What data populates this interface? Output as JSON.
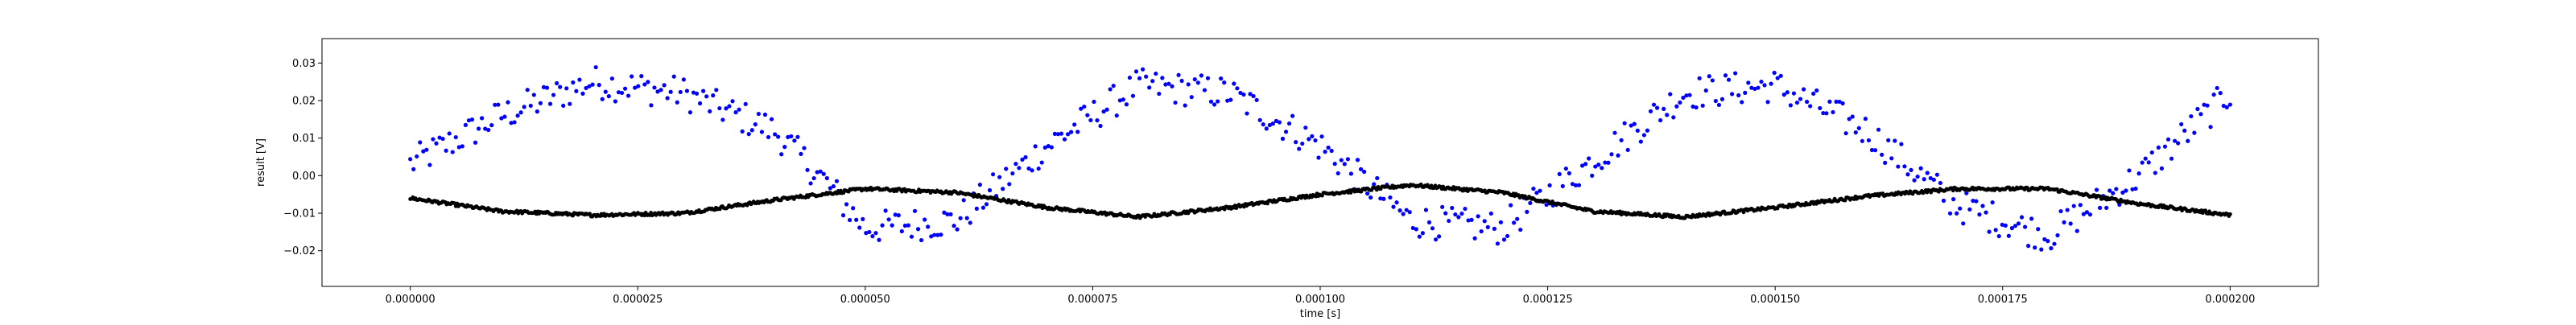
{
  "chart_data": {
    "type": "scatter",
    "title": "",
    "xlabel": "time [s]",
    "ylabel": "result [V]",
    "xlim": [
      -9.7e-06,
      0.0002097
    ],
    "ylim": [
      -0.0295,
      0.0365
    ],
    "grid": false,
    "xticks": [
      0.0,
      2.5e-05,
      5e-05,
      7.5e-05,
      0.0001,
      0.000125,
      0.00015,
      0.000175,
      0.0002
    ],
    "xtick_labels": [
      "0.000000",
      "0.000025",
      "0.000050",
      "0.000075",
      "0.000100",
      "0.000125",
      "0.000150",
      "0.000175",
      "0.000200"
    ],
    "yticks": [
      -0.02,
      -0.01,
      0.0,
      0.01,
      0.02,
      0.03
    ],
    "ytick_labels": [
      "−0.02",
      "−0.01",
      "0.00",
      "0.01",
      "0.02",
      "0.03"
    ],
    "series": [
      {
        "color": "#0000ff",
        "marker": "dot",
        "x": [
          0.0,
          1e-05,
          2e-05,
          3e-05,
          4e-05,
          4.5e-05,
          5e-05,
          6e-05,
          7e-05,
          8e-05,
          9e-05,
          0.0001,
          0.00011,
          0.00012,
          0.00013,
          0.00014,
          0.00015,
          0.00016,
          0.00017,
          0.00018,
          0.00019,
          0.0002
        ],
        "y": [
          0.003,
          0.016,
          0.025,
          0.022,
          0.012,
          0.0,
          -0.014,
          -0.012,
          0.008,
          0.024,
          0.022,
          0.008,
          -0.012,
          -0.014,
          0.004,
          0.022,
          0.024,
          0.012,
          -0.008,
          -0.016,
          0.0,
          0.022
        ],
        "spread": 0.0045
      },
      {
        "color": "#000000",
        "marker": "dot",
        "x": [
          0.0,
          1e-05,
          2e-05,
          3e-05,
          4e-05,
          5e-05,
          6e-05,
          7e-05,
          8e-05,
          9e-05,
          0.0001,
          0.00011,
          0.00012,
          0.00013,
          0.00014,
          0.00015,
          0.00016,
          0.00017,
          0.00018,
          0.00019,
          0.0002
        ],
        "y": [
          -0.006,
          -0.0095,
          -0.0105,
          -0.01,
          -0.0065,
          -0.0035,
          -0.0045,
          -0.0085,
          -0.011,
          -0.0085,
          -0.005,
          -0.0025,
          -0.0045,
          -0.0095,
          -0.011,
          -0.0085,
          -0.0055,
          -0.0035,
          -0.0035,
          -0.0075,
          -0.0105
        ],
        "spread": 0.0004
      }
    ]
  }
}
